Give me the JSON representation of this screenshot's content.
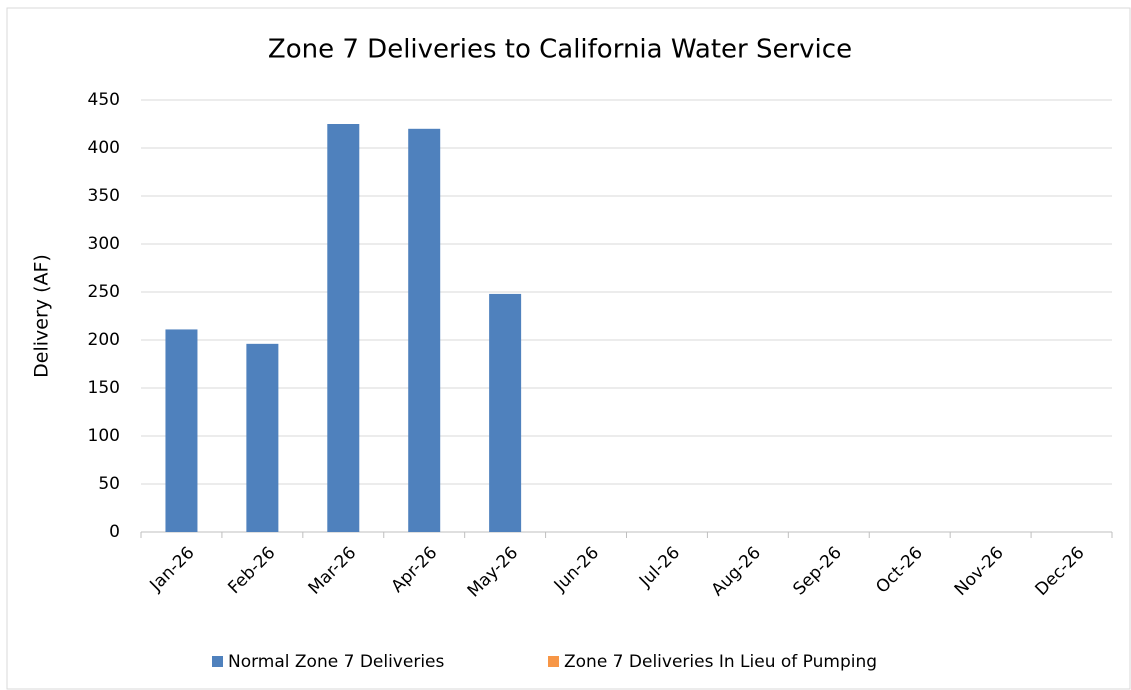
{
  "chart_data": {
    "type": "bar",
    "title": "Zone 7 Deliveries to California Water Service",
    "y_label": "Delivery (AF)",
    "categories": [
      "Jan-26",
      "Feb-26",
      "Mar-26",
      "Apr-26",
      "May-26",
      "Jun-26",
      "Jul-26",
      "Aug-26",
      "Sep-26",
      "Oct-26",
      "Nov-26",
      "Dec-26"
    ],
    "series": [
      {
        "name": "Normal Zone 7 Deliveries",
        "color": "#4f81bd",
        "values": [
          211,
          196,
          425,
          420,
          248,
          null,
          null,
          null,
          null,
          null,
          null,
          null
        ]
      },
      {
        "name": "Zone 7 Deliveries In Lieu of Pumping",
        "color": "#f79646",
        "values": [
          0,
          0,
          0,
          0,
          0,
          null,
          null,
          null,
          null,
          null,
          null,
          null
        ]
      }
    ],
    "ylim": [
      0,
      450
    ],
    "yticks": [
      0,
      50,
      100,
      150,
      200,
      250,
      300,
      350,
      400,
      450
    ],
    "grid": true,
    "legend": "bottom"
  }
}
